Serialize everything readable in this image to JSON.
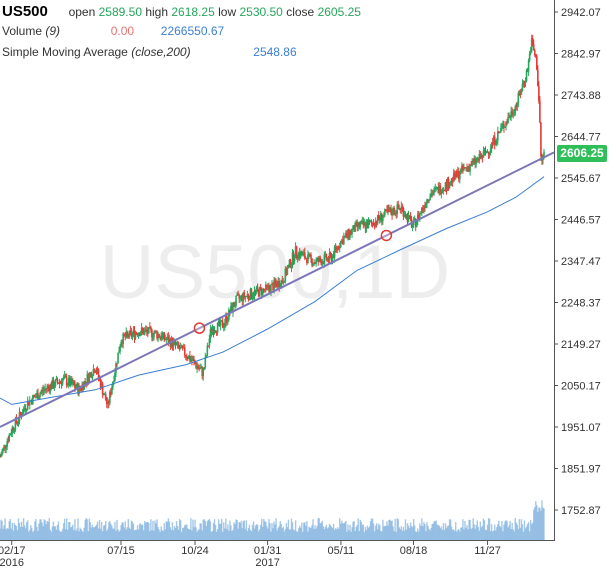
{
  "header": {
    "symbol": "US500",
    "open_label": "open",
    "open_value": "2589.50",
    "high_label": "high",
    "high_value": "2618.25",
    "low_label": "low",
    "low_value": "2530.50",
    "close_label": "close",
    "close_value": "2605.25"
  },
  "volume_legend": {
    "label": "Volume",
    "param": "(9)",
    "value1": "0.00",
    "value2": "2266550.67"
  },
  "sma_legend": {
    "label": "Simple Moving Average",
    "param": "(close,200)",
    "value": "2548.86"
  },
  "watermark": "US500,1D",
  "last_price_tag": "2606.25",
  "colors": {
    "up": "#26a65b",
    "down": "#e53935",
    "sma": "#3b7fd1",
    "trend": "#7b76b8",
    "volume": "#5b9bd5"
  },
  "chart_data": {
    "type": "line",
    "series": [
      {
        "name": "US500",
        "x": [
          "2016-02-01",
          "2016-02-17",
          "2016-03-10",
          "2016-04-05",
          "2016-04-28",
          "2016-05-19",
          "2016-06-10",
          "2016-06-27",
          "2016-07-15",
          "2016-08-08",
          "2016-08-31",
          "2016-09-20",
          "2016-10-12",
          "2016-11-04",
          "2016-11-15",
          "2016-12-01",
          "2016-12-20",
          "2017-01-10",
          "2017-01-31",
          "2017-02-20",
          "2017-03-10",
          "2017-04-05",
          "2017-04-28",
          "2017-05-11",
          "2017-06-02",
          "2017-06-20",
          "2017-07-12",
          "2017-08-01",
          "2017-08-18",
          "2017-09-08",
          "2017-10-02",
          "2017-10-25",
          "2017-11-15",
          "2017-11-27",
          "2017-12-15",
          "2018-01-05",
          "2018-01-20",
          "2018-01-26",
          "2018-02-02",
          "2018-02-06",
          "2018-02-08",
          "2018-02-12"
        ],
        "values": [
          1880,
          1945,
          2010,
          2045,
          2065,
          2040,
          2095,
          2000,
          2160,
          2180,
          2175,
          2155,
          2125,
          2080,
          2185,
          2195,
          2255,
          2270,
          2280,
          2300,
          2370,
          2345,
          2355,
          2395,
          2430,
          2435,
          2460,
          2475,
          2430,
          2505,
          2530,
          2565,
          2590,
          2610,
          2660,
          2720,
          2800,
          2872,
          2820,
          2700,
          2580,
          2606
        ]
      },
      {
        "name": "Simple Moving Average",
        "x": [
          "2016-02-01",
          "2016-02-17",
          "2016-04-05",
          "2016-06-10",
          "2016-08-08",
          "2016-10-12",
          "2016-12-01",
          "2017-01-31",
          "2017-04-05",
          "2017-06-02",
          "2017-08-01",
          "2017-10-02",
          "2017-11-27",
          "2018-01-05",
          "2018-02-12"
        ],
        "values": [
          2020,
          2005,
          2020,
          2040,
          2075,
          2100,
          2130,
          2185,
          2250,
          2325,
          2375,
          2425,
          2465,
          2500,
          2548.86
        ]
      },
      {
        "name": "Trend Line",
        "x": [
          "2016-02-01",
          "2018-02-12"
        ],
        "values": [
          1951,
          2595
        ]
      }
    ],
    "x_tick_labels": [
      "02/17",
      "07/15",
      "10/24",
      "01/31",
      "05/11",
      "08/18",
      "11/27"
    ],
    "x_year_labels": [
      "2016",
      "2017"
    ],
    "y_tick_labels": [
      "2942.07",
      "2842.97",
      "2743.88",
      "2644.77",
      "2545.67",
      "2446.57",
      "2347.47",
      "2248.37",
      "2149.27",
      "2050.17",
      "1951.07",
      "1851.97",
      "1752.87"
    ],
    "ylim": [
      1720,
      2960
    ],
    "grid": "off",
    "volume_bars": true
  }
}
